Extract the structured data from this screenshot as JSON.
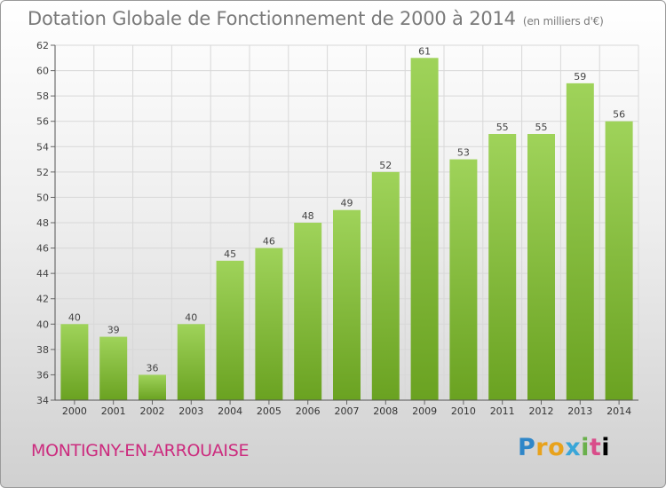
{
  "title": "Dotation Globale de Fonctionnement de 2000 à 2014",
  "unit": "(en milliers d'€)",
  "commune": "MONTIGNY-EN-ARROUAISE",
  "brand": [
    "P",
    "r",
    "o",
    "x",
    "i",
    "t",
    "i"
  ],
  "chart_data": {
    "type": "bar",
    "categories": [
      "2000",
      "2001",
      "2002",
      "2003",
      "2004",
      "2005",
      "2006",
      "2007",
      "2008",
      "2009",
      "2010",
      "2011",
      "2012",
      "2013",
      "2014"
    ],
    "values": [
      40,
      39,
      36,
      40,
      45,
      46,
      48,
      49,
      52,
      61,
      53,
      55,
      55,
      59,
      56
    ],
    "ylim": [
      34,
      62
    ],
    "yticks": [
      34,
      36,
      38,
      40,
      42,
      44,
      46,
      48,
      50,
      52,
      54,
      56,
      58,
      60,
      62
    ],
    "grid": true,
    "colors": {
      "bar_light": "#9fd35a",
      "bar_dark": "#6aa221",
      "grid": "#d8d8d8"
    }
  }
}
